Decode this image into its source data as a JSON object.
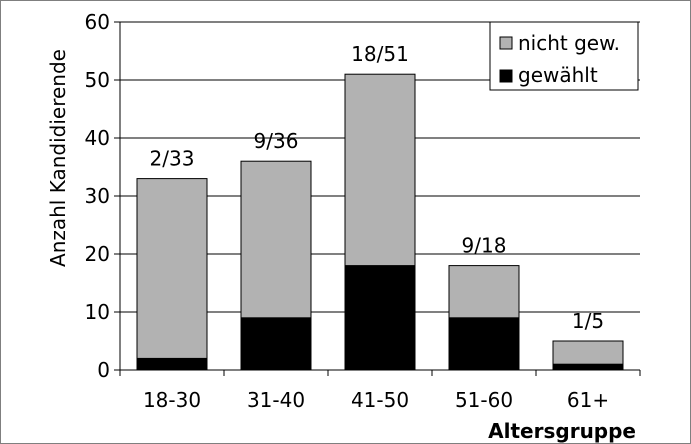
{
  "chart_data": {
    "type": "bar",
    "stacked": true,
    "categories": [
      "18-30",
      "31-40",
      "41-50",
      "51-60",
      "61+"
    ],
    "series": [
      {
        "name": "gewählt",
        "values": [
          2,
          9,
          18,
          9,
          1
        ],
        "color": "#000000"
      },
      {
        "name": "nicht gew.",
        "values": [
          31,
          27,
          33,
          9,
          4
        ],
        "color": "#b2b2b2"
      }
    ],
    "bar_labels": [
      "2/33",
      "9/36",
      "18/51",
      "9/18",
      "1/5"
    ],
    "xlabel": "Altersgruppe",
    "ylabel": "Anzahl Kandidierende",
    "ylim": [
      0,
      60
    ],
    "yticks": [
      0,
      10,
      20,
      30,
      40,
      50,
      60
    ],
    "grid": true,
    "legend": {
      "placement": "top-right",
      "entries": [
        "nicht gew.",
        "gewählt"
      ]
    }
  }
}
